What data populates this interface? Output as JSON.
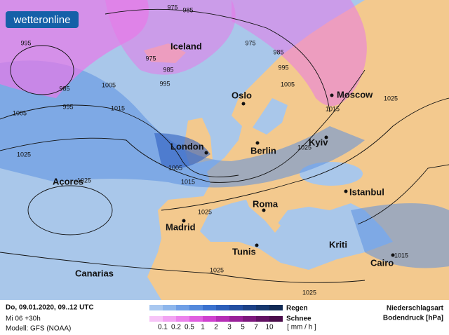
{
  "logo": "wetteronline",
  "cities": [
    "Iceland",
    "Oslo",
    "Moscow",
    "London",
    "Berlin",
    "Kyiv",
    "Açores",
    "Madrid",
    "Roma",
    "Istanbul",
    "Tunis",
    "Kriti",
    "Canarias",
    "Cairo"
  ],
  "isobars": [
    975,
    985,
    995,
    975,
    985,
    975,
    985,
    995,
    1005,
    985,
    995,
    1005,
    1005,
    1015,
    995,
    1025,
    1005,
    1015,
    1025,
    1025,
    1015,
    1025,
    1025,
    1025,
    1025,
    1015
  ],
  "footer": {
    "date": "Do, 09.01.2020, 09..12 UTC",
    "run": "Mi 06 +30h",
    "model": "Modell: GFS (NOAA)",
    "rain": "Regen",
    "snow": "Schnee",
    "scale": [
      "0.1",
      "0.2",
      "0.5",
      "1",
      "2",
      "3",
      "5",
      "7",
      "10"
    ],
    "unit": "[ mm / h ]",
    "type_label": "Niederschlagsart",
    "pressure_label": "Bodendruck [hPa]"
  }
}
